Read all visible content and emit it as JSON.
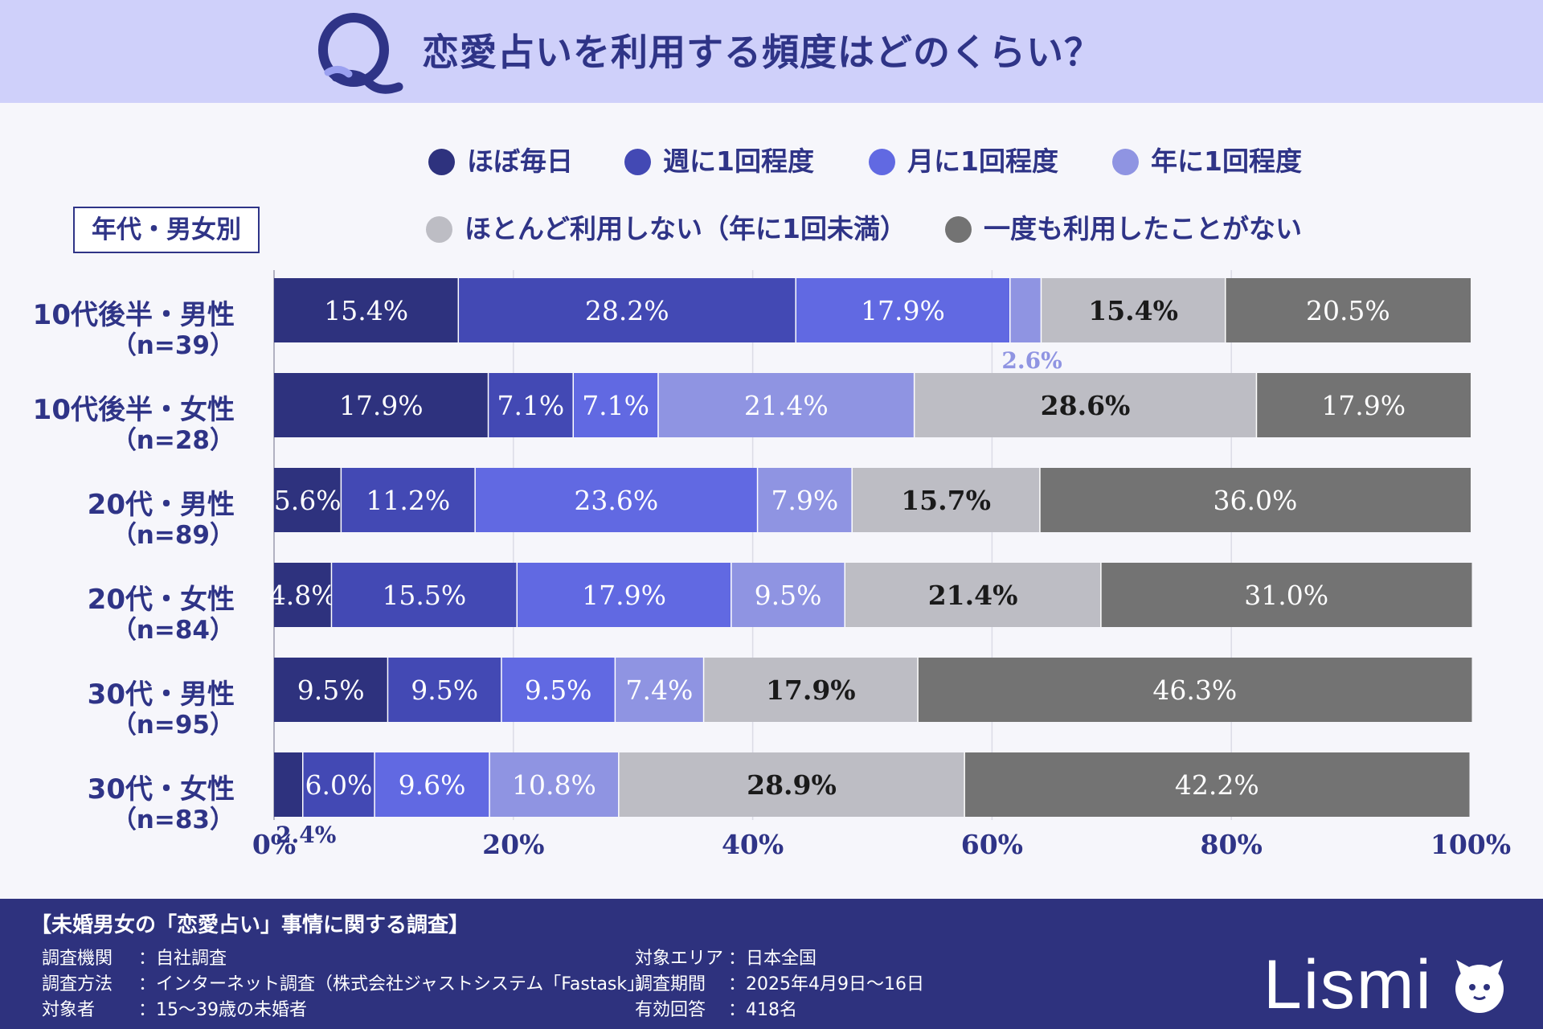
{
  "header": {
    "logo_text": "Q",
    "question": "恋愛占いを利用する頻度はどのくらい？"
  },
  "group_label": "年代・男女別",
  "legend": [
    {
      "label": "ほぼ毎日",
      "color": "#2e327e"
    },
    {
      "label": "週に1回程度",
      "color": "#4349b4"
    },
    {
      "label": "月に1回程度",
      "color": "#6169e2"
    },
    {
      "label": "年に1回程度",
      "color": "#8f94e2"
    },
    {
      "label": "ほとんど利用しない（年に1回未満）",
      "color": "#bdbdc4"
    },
    {
      "label": "一度も利用したことがない",
      "color": "#737373"
    }
  ],
  "chart_data": {
    "type": "bar",
    "orientation": "horizontal",
    "stacked": true,
    "xlim": [
      0,
      100
    ],
    "x_ticks": [
      "0%",
      "20%",
      "40%",
      "60%",
      "80%",
      "100%"
    ],
    "grid": true,
    "categories": [
      {
        "name": "10代後半・男性",
        "n": "（n=39）"
      },
      {
        "name": "10代後半・女性",
        "n": "（n=28）"
      },
      {
        "name": "20代・男性",
        "n": "（n=89）"
      },
      {
        "name": "20代・女性",
        "n": "（n=84）"
      },
      {
        "name": "30代・男性",
        "n": "（n=95）"
      },
      {
        "name": "30代・女性",
        "n": "（n=83）"
      }
    ],
    "series": [
      {
        "name": "ほぼ毎日",
        "color": "#2e327e",
        "label_color": "#ffffff",
        "values": [
          15.4,
          17.9,
          5.6,
          4.8,
          9.5,
          2.4
        ]
      },
      {
        "name": "週に1回程度",
        "color": "#4349b4",
        "label_color": "#ffffff",
        "values": [
          28.2,
          7.1,
          11.2,
          15.5,
          9.5,
          6.0
        ]
      },
      {
        "name": "月に1回程度",
        "color": "#6169e2",
        "label_color": "#ffffff",
        "values": [
          17.9,
          7.1,
          23.6,
          17.9,
          9.5,
          9.6
        ]
      },
      {
        "name": "年に1回程度",
        "color": "#8f94e2",
        "label_color": "#ffffff",
        "values": [
          2.6,
          21.4,
          7.9,
          9.5,
          7.4,
          10.8
        ]
      },
      {
        "name": "ほとんど利用しない（年に1回未満）",
        "color": "#bdbdc4",
        "label_color": "#1a1a1a",
        "values": [
          15.4,
          28.6,
          15.7,
          21.4,
          17.9,
          28.9
        ]
      },
      {
        "name": "一度も利用したことがない",
        "color": "#737373",
        "label_color": "#ffffff",
        "values": [
          20.5,
          17.9,
          36.0,
          31.0,
          46.3,
          42.2
        ]
      }
    ]
  },
  "footer": {
    "title": "【未婚男女の「恋愛占い」事情に関する調査】",
    "left": [
      {
        "key": "調査機関",
        "value": "：自社調査"
      },
      {
        "key": "調査方法",
        "value": "：インターネット調査（株式会社ジャストシステム「Fastask」）"
      },
      {
        "key": "対象者",
        "value": "：15～39歳の未婚者"
      }
    ],
    "right": [
      {
        "key": "対象エリア",
        "value": "：日本全国"
      },
      {
        "key": "調査期間",
        "value": "：2025年4月9日～16日"
      },
      {
        "key": "有効回答",
        "value": "：418名"
      }
    ],
    "brand": "Lismi"
  }
}
